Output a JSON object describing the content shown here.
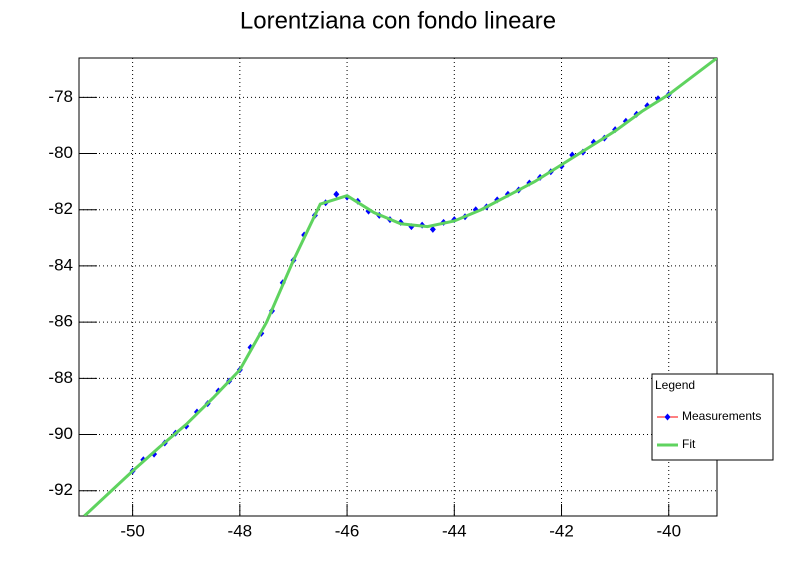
{
  "chart_data": {
    "type": "scatter",
    "title": "Lorentziana con fondo lineare",
    "xlim": [
      -51,
      -39.1
    ],
    "ylim": [
      -92.9,
      -76.6
    ],
    "xticks": [
      -50,
      -48,
      -46,
      -44,
      -42,
      -40
    ],
    "yticks": [
      -92,
      -90,
      -88,
      -86,
      -84,
      -82,
      -80,
      -78
    ],
    "grid": true,
    "legend_title": "Legend",
    "legend_position": "right",
    "series": [
      {
        "name": "Measurements",
        "style": "markers",
        "color": "#0000ff",
        "line_color": "#ff0000",
        "x": [
          -50.0,
          -49.8,
          -49.6,
          -49.4,
          -49.2,
          -49.0,
          -48.8,
          -48.6,
          -48.4,
          -48.2,
          -48.0,
          -47.8,
          -47.6,
          -47.4,
          -47.2,
          -47.0,
          -46.8,
          -46.6,
          -46.4,
          -46.2,
          -46.0,
          -45.8,
          -45.6,
          -45.4,
          -45.2,
          -45.0,
          -44.8,
          -44.6,
          -44.4,
          -44.2,
          -44.0,
          -43.8,
          -43.6,
          -43.4,
          -43.2,
          -43.0,
          -42.8,
          -42.6,
          -42.4,
          -42.2,
          -42.0,
          -41.8,
          -41.6,
          -41.4,
          -41.2,
          -41.0,
          -40.8,
          -40.6,
          -40.4,
          -40.2,
          -40.0
        ],
        "values": [
          -91.3,
          -90.9,
          -90.7,
          -90.3,
          -89.95,
          -89.7,
          -89.2,
          -88.9,
          -88.45,
          -88.1,
          -87.7,
          -86.9,
          -86.4,
          -85.6,
          -84.6,
          -83.8,
          -82.9,
          -82.2,
          -81.75,
          -81.45,
          -81.55,
          -81.7,
          -82.05,
          -82.2,
          -82.35,
          -82.45,
          -82.6,
          -82.55,
          -82.7,
          -82.45,
          -82.35,
          -82.25,
          -82.0,
          -81.9,
          -81.65,
          -81.45,
          -81.3,
          -81.05,
          -80.85,
          -80.65,
          -80.45,
          -80.05,
          -79.95,
          -79.6,
          -79.45,
          -79.15,
          -78.85,
          -78.6,
          -78.3,
          -78.05,
          -77.9
        ]
      },
      {
        "name": "Fit",
        "style": "line",
        "color": "#5fd35f",
        "x": [
          -50.9,
          -50.0,
          -49.5,
          -49.0,
          -48.5,
          -48.0,
          -47.5,
          -47.0,
          -46.5,
          -46.0,
          -45.5,
          -45.0,
          -44.5,
          -44.0,
          -43.5,
          -43.0,
          -42.5,
          -42.0,
          -41.5,
          -41.0,
          -40.5,
          -40.0,
          -39.1
        ],
        "values": [
          -92.9,
          -91.3,
          -90.45,
          -89.64,
          -88.7,
          -87.7,
          -86.0,
          -83.8,
          -81.8,
          -81.5,
          -82.1,
          -82.5,
          -82.6,
          -82.4,
          -82.0,
          -81.5,
          -81.0,
          -80.4,
          -79.8,
          -79.2,
          -78.5,
          -77.9,
          -76.6
        ]
      }
    ]
  }
}
